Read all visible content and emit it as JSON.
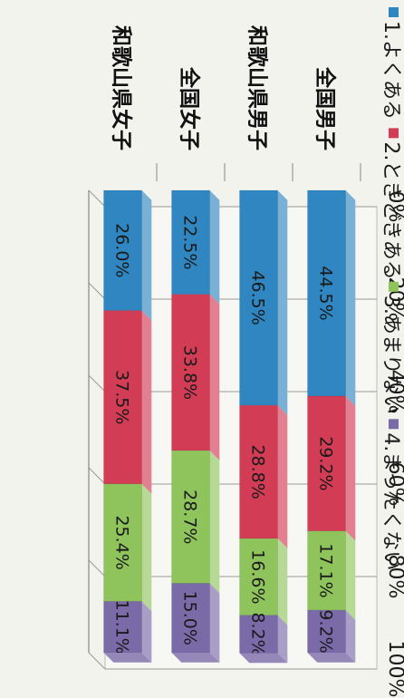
{
  "chart_data": {
    "type": "bar",
    "stacked": true,
    "orientation": "horizontal",
    "categories": [
      "全国男子",
      "和歌山県男子",
      "全国女子",
      "和歌山県女子"
    ],
    "series": [
      {
        "name": "1.よくある",
        "color": "#2f86c0",
        "values": [
          44.5,
          46.5,
          22.5,
          26.0
        ]
      },
      {
        "name": "2.ときどきある",
        "color": "#d23c55",
        "values": [
          29.2,
          28.8,
          33.8,
          37.5
        ]
      },
      {
        "name": "3.あまりない",
        "color": "#8fc45c",
        "values": [
          17.1,
          16.6,
          28.7,
          25.4
        ]
      },
      {
        "name": "4.まったくない",
        "color": "#7a6aa8",
        "values": [
          9.2,
          8.2,
          15.0,
          11.1
        ]
      }
    ],
    "data_labels": [
      [
        "44.5%",
        "29.2%",
        "17.1%",
        "9.2%"
      ],
      [
        "46.5%",
        "28.8%",
        "16.6%",
        "8.2%"
      ],
      [
        "22.5%",
        "33.8%",
        "28.7%",
        "15.0%"
      ],
      [
        "26.0%",
        "37.5%",
        "25.4%",
        "11.1%"
      ]
    ],
    "axis": {
      "ticks": [
        0,
        20,
        40,
        60,
        80,
        100
      ],
      "tick_labels": [
        "0%",
        "20%",
        "40%",
        "60%",
        "80%",
        "100%"
      ],
      "range": [
        0,
        100
      ]
    },
    "grid": true,
    "legend_position": "left",
    "rotation": "chart printed rotated 90° clockwise"
  }
}
